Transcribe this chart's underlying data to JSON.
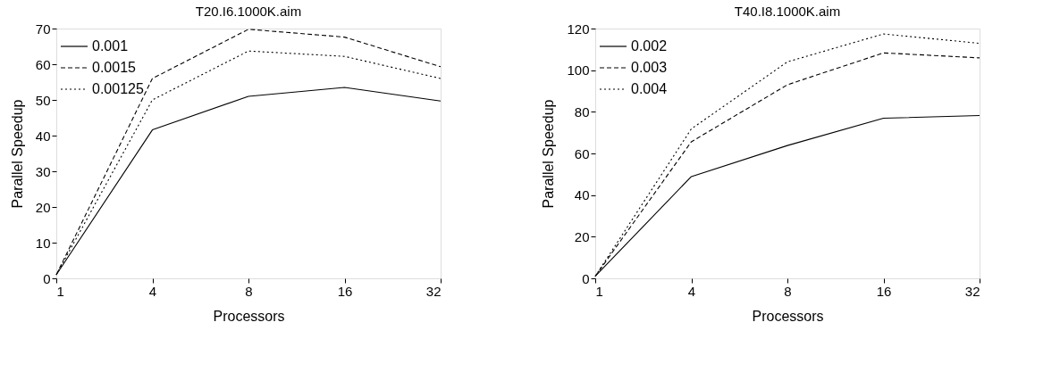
{
  "chart_data": [
    {
      "type": "line",
      "title": "T20.I6.1000K.aim",
      "xlabel": "Processors",
      "ylabel": "Parallel Speedup",
      "categories": [
        "1",
        "4",
        "8",
        "16",
        "32"
      ],
      "ylim": [
        0,
        70
      ],
      "yticks": [
        0,
        10,
        20,
        30,
        40,
        50,
        60,
        70
      ],
      "grid": false,
      "legend": "top left",
      "marker": "none",
      "series": [
        {
          "name": "0.001",
          "color": "#000000",
          "line_style": "solid",
          "values": [
            1,
            41.6,
            51,
            53.5,
            49.7
          ]
        },
        {
          "name": "0.0015",
          "color": "#000000",
          "line_style": "dashed",
          "values": [
            1,
            56,
            69.8,
            67.6,
            59.3
          ]
        },
        {
          "name": "0.00125",
          "color": "#000000",
          "line_style": "dotted",
          "values": [
            1,
            50,
            63.7,
            62.2,
            56
          ]
        }
      ]
    },
    {
      "type": "line",
      "title": "T40.I8.1000K.aim",
      "xlabel": "Processors",
      "ylabel": "Parallel Speedup",
      "categories": [
        "1",
        "4",
        "8",
        "16",
        "32"
      ],
      "ylim": [
        0,
        120
      ],
      "yticks": [
        0,
        20,
        40,
        60,
        80,
        100,
        120
      ],
      "grid": false,
      "legend": "top left",
      "marker": "none",
      "series": [
        {
          "name": "0.002",
          "color": "#000000",
          "line_style": "solid",
          "values": [
            1,
            48.9,
            63.8,
            76.9,
            78.2
          ]
        },
        {
          "name": "0.003",
          "color": "#000000",
          "line_style": "dashed",
          "values": [
            1,
            65.6,
            93,
            108.3,
            105.9
          ]
        },
        {
          "name": "0.004",
          "color": "#000000",
          "line_style": "dotted",
          "values": [
            1,
            71.8,
            104,
            117.4,
            112.9
          ]
        }
      ]
    }
  ]
}
